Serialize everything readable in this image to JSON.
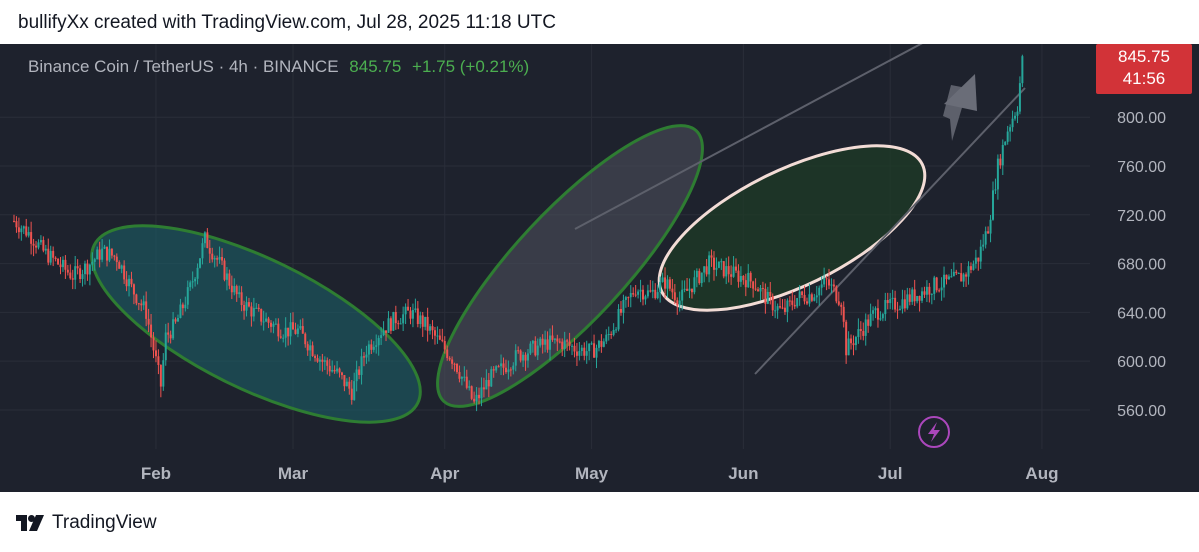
{
  "caption": "bullifyXx created with TradingView.com, Jul 28, 2025 11:18 UTC",
  "footer": {
    "logo_text": "TradingView",
    "logo_icon": "tradingview-logo-icon"
  },
  "legend": {
    "symbol": "Binance Coin / TetherUS · 4h · BINANCE",
    "price": "845.75",
    "change": "+1.75 (+0.21%)"
  },
  "price_tag": {
    "price": "845.75",
    "countdown": "41:56"
  },
  "colors": {
    "background": "#1e222d",
    "grid": "#2a2e39",
    "candle_up": "#26a69a",
    "candle_down": "#ef5350",
    "ellipse_teal_fill": "#1c5a63",
    "ellipse_teal_stroke": "#2e7d32",
    "ellipse_grey_fill": "#4b4f5a",
    "ellipse_green_fill": "#1d3b26",
    "ellipse_white_stroke": "#f3dcd6",
    "channel_line": "#5d606b",
    "arrow": "#5d606b",
    "price_tag_bg": "#d23338",
    "lightning_icon": "#ab47bc"
  },
  "annotations": [
    {
      "type": "ellipse",
      "label": "distribution/decline zone (teal)"
    },
    {
      "type": "ellipse",
      "label": "recovery zone (grey)"
    },
    {
      "type": "ellipse",
      "label": "accumulation zone (green, white outline)"
    },
    {
      "type": "ascending-channel"
    },
    {
      "type": "up-arrow"
    },
    {
      "type": "lightning-icon"
    }
  ],
  "chart_data": {
    "type": "line",
    "style": "candlestick",
    "title": "Binance Coin / TetherUS · 4h · BINANCE",
    "xlabel": "",
    "ylabel": "",
    "ylim": [
      528,
      860
    ],
    "y_ticks": [
      "560.00",
      "600.00",
      "640.00",
      "680.00",
      "720.00",
      "760.00",
      "800.00"
    ],
    "x_ticks": [
      "Feb",
      "Mar",
      "Apr",
      "May",
      "Jun",
      "Jul",
      "Aug"
    ],
    "x_tick_dates": [
      "2025-02-01",
      "2025-03-01",
      "2025-04-01",
      "2025-05-01",
      "2025-06-01",
      "2025-07-01",
      "2025-08-01"
    ],
    "x_range": [
      "2025-01-03",
      "2025-08-10"
    ],
    "grid": true,
    "series": [
      {
        "x": [
          "2025-01-03",
          "2025-01-06",
          "2025-01-09",
          "2025-01-12",
          "2025-01-15",
          "2025-01-18",
          "2025-01-21",
          "2025-01-24",
          "2025-01-27",
          "2025-01-30",
          "2025-02-02",
          "2025-02-03",
          "2025-02-05",
          "2025-02-08",
          "2025-02-11",
          "2025-02-14",
          "2025-02-16",
          "2025-02-18",
          "2025-02-21",
          "2025-02-24",
          "2025-02-27",
          "2025-03-02",
          "2025-03-04",
          "2025-03-07",
          "2025-03-10",
          "2025-03-13",
          "2025-03-16",
          "2025-03-19",
          "2025-03-22",
          "2025-03-25",
          "2025-03-28",
          "2025-03-31",
          "2025-04-03",
          "2025-04-07",
          "2025-04-10",
          "2025-04-13",
          "2025-04-16",
          "2025-04-19",
          "2025-04-22",
          "2025-04-25",
          "2025-04-28",
          "2025-05-01",
          "2025-05-04",
          "2025-05-07",
          "2025-05-10",
          "2025-05-13",
          "2025-05-16",
          "2025-05-19",
          "2025-05-22",
          "2025-05-25",
          "2025-05-28",
          "2025-05-31",
          "2025-06-03",
          "2025-06-06",
          "2025-06-09",
          "2025-06-12",
          "2025-06-15",
          "2025-06-18",
          "2025-06-21",
          "2025-06-22",
          "2025-06-25",
          "2025-06-28",
          "2025-07-01",
          "2025-07-04",
          "2025-07-07",
          "2025-07-10",
          "2025-07-13",
          "2025-07-16",
          "2025-07-19",
          "2025-07-21",
          "2025-07-23",
          "2025-07-25",
          "2025-07-27",
          "2025-07-28"
        ],
        "y": [
          715,
          705,
          690,
          680,
          670,
          678,
          690,
          685,
          660,
          640,
          580,
          620,
          630,
          660,
          700,
          680,
          665,
          650,
          640,
          632,
          625,
          625,
          615,
          600,
          590,
          575,
          610,
          625,
          635,
          640,
          630,
          615,
          600,
          565,
          585,
          595,
          605,
          610,
          615,
          615,
          610,
          608,
          618,
          640,
          660,
          655,
          665,
          650,
          665,
          680,
          675,
          670,
          665,
          650,
          640,
          652,
          655,
          665,
          650,
          610,
          625,
          640,
          645,
          650,
          656,
          662,
          665,
          670,
          685,
          710,
          760,
          790,
          810,
          845.75
        ]
      }
    ]
  }
}
